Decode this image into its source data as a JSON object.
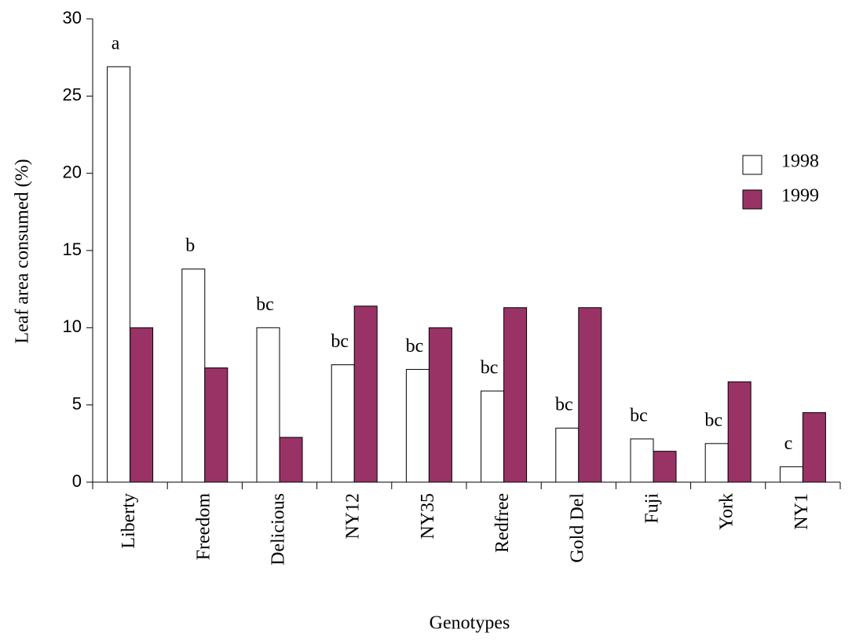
{
  "chart_data": {
    "type": "bar",
    "x_label": "Genotypes",
    "y_label": "Leaf area consumed (%)",
    "categories": [
      "Liberty",
      "Freedom",
      "Delicious",
      "NY12",
      "NY35",
      "Redfree",
      "Gold Del",
      "Fuji",
      "York",
      "NY1"
    ],
    "series": [
      {
        "name": "1998",
        "color": "#ffffff",
        "values": [
          26.9,
          13.8,
          10.0,
          7.6,
          7.3,
          5.9,
          3.5,
          2.8,
          2.5,
          1.0
        ]
      },
      {
        "name": "1999",
        "color": "#993366",
        "values": [
          10.0,
          7.4,
          2.9,
          11.4,
          10.0,
          11.3,
          11.3,
          2.0,
          6.5,
          4.5
        ]
      }
    ],
    "annotations": [
      "a",
      "b",
      "bc",
      "bc",
      "bc",
      "bc",
      "bc",
      "bc",
      "bc",
      "c"
    ],
    "ylim": [
      0,
      30
    ],
    "yticks": [
      0,
      5,
      10,
      15,
      20,
      25,
      30
    ],
    "grid": false,
    "legend": "right"
  }
}
